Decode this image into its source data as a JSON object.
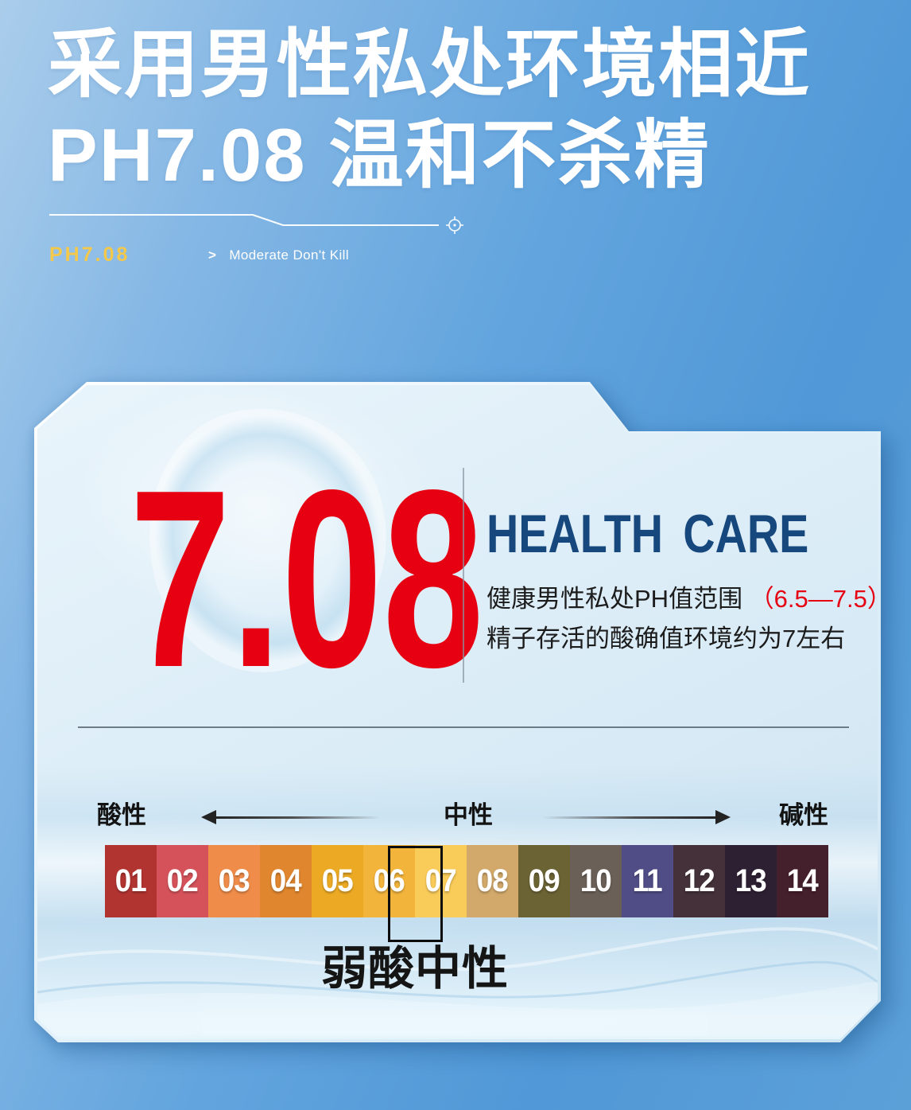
{
  "header": {
    "title_line1": "采用男性私处环境相近",
    "title_line2": "PH7.08 温和不杀精",
    "badge_label": "PH7.08",
    "divider_arrow": ">",
    "divider_caption": "Moderate Don't Kill"
  },
  "card": {
    "ph_value": "7.08",
    "heading": "HEALTH CARE",
    "desc_line1": "健康男性私处PH值范围 ",
    "desc_line1_highlight": "（6.5—7.5）",
    "desc_line2": "精子存活的酸确值环境约为7左右",
    "scale": {
      "acid_label": "酸性",
      "neutral_label": "中性",
      "alkaline_label": "碱性",
      "caption": "弱酸中性",
      "highlight_cells": [
        "06",
        "07"
      ],
      "cells": [
        {
          "label": "01",
          "color": "#b23431"
        },
        {
          "label": "02",
          "color": "#d5525a"
        },
        {
          "label": "03",
          "color": "#ef8c49"
        },
        {
          "label": "04",
          "color": "#e0862e"
        },
        {
          "label": "05",
          "color": "#ecaa24"
        },
        {
          "label": "06",
          "color": "#f3b43c"
        },
        {
          "label": "07",
          "color": "#f9cb59"
        },
        {
          "label": "08",
          "color": "#d2a96b"
        },
        {
          "label": "09",
          "color": "#6b6334"
        },
        {
          "label": "10",
          "color": "#6a6057"
        },
        {
          "label": "11",
          "color": "#504c86"
        },
        {
          "label": "12",
          "color": "#443139"
        },
        {
          "label": "13",
          "color": "#2e2033"
        },
        {
          "label": "14",
          "color": "#441f2c"
        }
      ]
    }
  },
  "colors": {
    "ph_red": "#e60012",
    "heading_blue": "#16487e",
    "badge_yellow": "#f3c84b"
  }
}
